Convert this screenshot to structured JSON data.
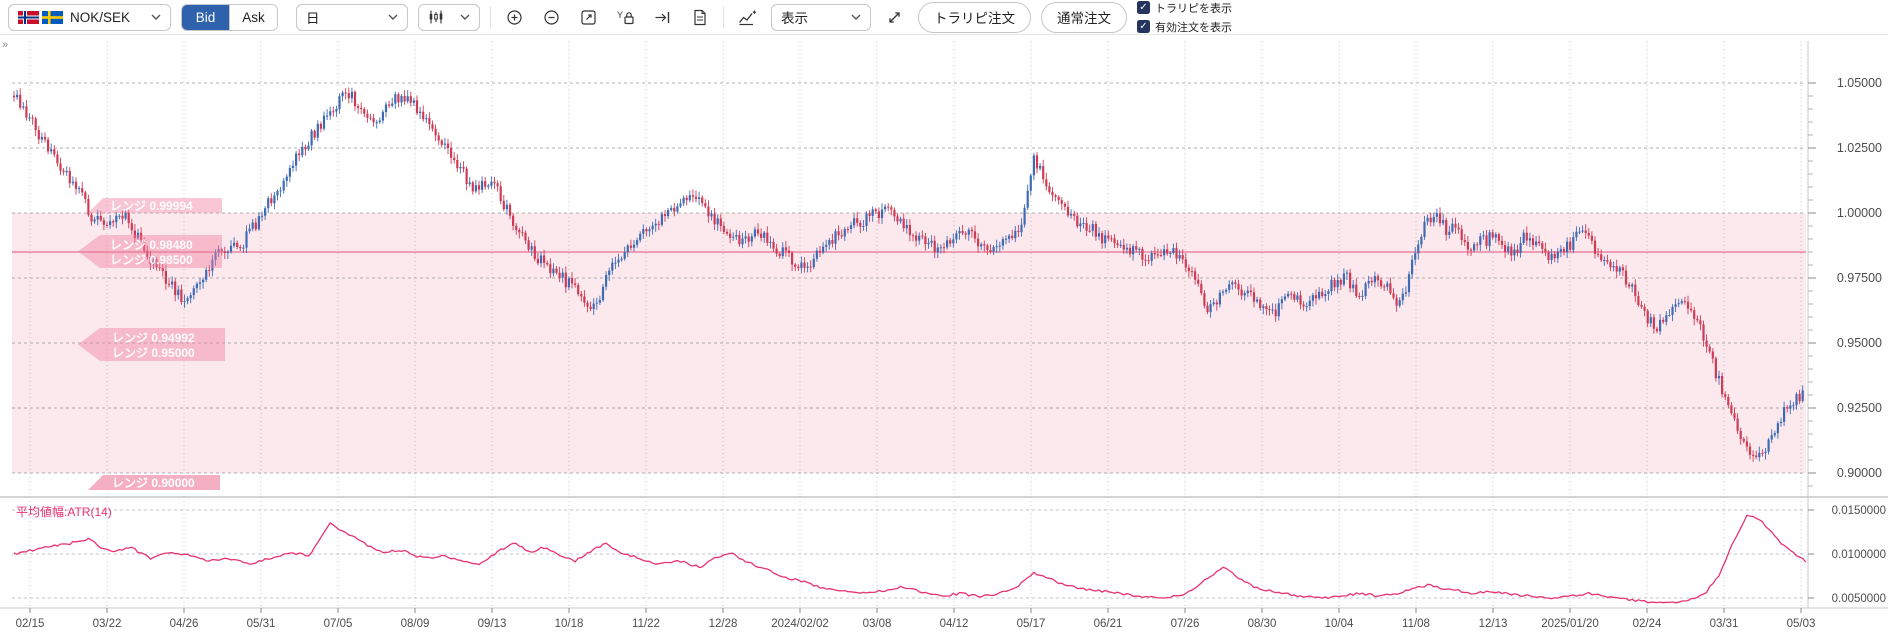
{
  "toolbar": {
    "symbol": "NOK/SEK",
    "bid_label": "Bid",
    "ask_label": "Ask",
    "timeframe": "日",
    "display_label": "表示",
    "toraripi_order_button": "トラリピ注文",
    "normal_order_button": "通常注文",
    "checkbox_toraripi": "トラリピを表示",
    "checkbox_active_orders": "有効注文を表示",
    "icons": [
      "zoom-in",
      "zoom-out",
      "fit-screen",
      "y-axis-lock",
      "go-to-latest",
      "memo",
      "add-indicator",
      "expand"
    ],
    "collapse_glyph": "»",
    "check_glyph": "✓"
  },
  "colors": {
    "accent_blue": "#2e62ad",
    "candle_up": "#3f6bb5",
    "candle_down": "#cf3b55",
    "band_fill": "#fbe9ee",
    "band_line": "#ef9db5",
    "arrow_fill": "rgba(240,128,160,0.45)",
    "arrow_solid": "#f5afc3",
    "atr_line": "#e8336e",
    "grid": "#9b9b9b",
    "axis_text": "#4d4d4d",
    "checkbox_navy": "#25335f"
  },
  "chart_data": {
    "type": "candlestick",
    "symbol": "NOK/SEK",
    "timeframe": "日足",
    "price_axis": {
      "labels": [
        "1.05000",
        "1.02500",
        "1.00000",
        "0.97500",
        "0.95000",
        "0.92500",
        "0.90000"
      ],
      "values": [
        1.05,
        1.025,
        1.0,
        0.975,
        0.95,
        0.925,
        0.9
      ]
    },
    "date_ticks": [
      "02/15",
      "03/22",
      "04/26",
      "05/31",
      "07/05",
      "08/09",
      "09/13",
      "10/18",
      "11/22",
      "12/28",
      "2024/02/02",
      "03/08",
      "04/12",
      "05/17",
      "06/21",
      "07/26",
      "08/30",
      "10/04",
      "11/08",
      "12/13",
      "2025/01/20",
      "02/24",
      "03/31",
      "05/03"
    ],
    "range_band": {
      "top": 1.0,
      "bottom": 0.9,
      "center_line": 0.985,
      "labels": [
        {
          "text": "レンジ 0.99994",
          "group": "top"
        },
        {
          "text": "レンジ 0.98480",
          "group": "mid1"
        },
        {
          "text": "レンジ 0.98500",
          "group": "mid1"
        },
        {
          "text": "レンジ 0.94992",
          "group": "mid2"
        },
        {
          "text": "レンジ 0.95000",
          "group": "mid2"
        },
        {
          "text": "レンジ 0.90000",
          "group": "bottom"
        }
      ]
    },
    "trend_anchors": [
      [
        14,
        1.046
      ],
      [
        28,
        1.037
      ],
      [
        45,
        1.027
      ],
      [
        60,
        1.017
      ],
      [
        76,
        1.011
      ],
      [
        92,
        0.9985
      ],
      [
        108,
        0.9975
      ],
      [
        124,
        1.0005
      ],
      [
        138,
        0.9905
      ],
      [
        155,
        0.9795
      ],
      [
        170,
        0.9735
      ],
      [
        186,
        0.9645
      ],
      [
        202,
        0.9752
      ],
      [
        220,
        0.9868
      ],
      [
        238,
        0.9862
      ],
      [
        256,
        0.9958
      ],
      [
        274,
        1.0068
      ],
      [
        292,
        1.0182
      ],
      [
        310,
        1.0285
      ],
      [
        328,
        1.0388
      ],
      [
        347,
        1.0468
      ],
      [
        360,
        1.0398
      ],
      [
        375,
        1.0352
      ],
      [
        393,
        1.0442
      ],
      [
        410,
        1.0432
      ],
      [
        428,
        1.0338
      ],
      [
        445,
        1.0262
      ],
      [
        460,
        1.0172
      ],
      [
        476,
        1.0082
      ],
      [
        492,
        1.0142
      ],
      [
        508,
        1.0002
      ],
      [
        524,
        0.9902
      ],
      [
        540,
        0.9818
      ],
      [
        558,
        0.9768
      ],
      [
        576,
        0.9698
      ],
      [
        595,
        0.9642
      ],
      [
        612,
        0.9788
      ],
      [
        630,
        0.9872
      ],
      [
        648,
        0.9935
      ],
      [
        665,
        0.9988
      ],
      [
        682,
        1.0032
      ],
      [
        698,
        1.0068
      ],
      [
        712,
        0.9988
      ],
      [
        726,
        0.9922
      ],
      [
        742,
        0.9892
      ],
      [
        758,
        0.9932
      ],
      [
        774,
        0.9872
      ],
      [
        790,
        0.9825
      ],
      [
        806,
        0.9788
      ],
      [
        822,
        0.9865
      ],
      [
        838,
        0.9925
      ],
      [
        855,
        0.9958
      ],
      [
        872,
        0.9992
      ],
      [
        888,
        1.0018
      ],
      [
        902,
        0.9962
      ],
      [
        918,
        0.9895
      ],
      [
        935,
        0.9862
      ],
      [
        950,
        0.9892
      ],
      [
        966,
        0.9922
      ],
      [
        982,
        0.9888
      ],
      [
        998,
        0.9862
      ],
      [
        1012,
        0.9908
      ],
      [
        1024,
        0.9988
      ],
      [
        1034,
        1.0225
      ],
      [
        1044,
        1.0128
      ],
      [
        1058,
        1.0042
      ],
      [
        1072,
        0.9985
      ],
      [
        1088,
        0.9948
      ],
      [
        1104,
        0.9902
      ],
      [
        1120,
        0.9862
      ],
      [
        1136,
        0.9858
      ],
      [
        1152,
        0.9822
      ],
      [
        1168,
        0.9852
      ],
      [
        1184,
        0.9822
      ],
      [
        1196,
        0.9752
      ],
      [
        1208,
        0.9622
      ],
      [
        1220,
        0.9688
      ],
      [
        1234,
        0.9712
      ],
      [
        1248,
        0.9682
      ],
      [
        1262,
        0.9652
      ],
      [
        1276,
        0.9622
      ],
      [
        1290,
        0.9682
      ],
      [
        1304,
        0.9652
      ],
      [
        1318,
        0.9688
      ],
      [
        1332,
        0.9735
      ],
      [
        1346,
        0.9752
      ],
      [
        1358,
        0.9682
      ],
      [
        1372,
        0.9748
      ],
      [
        1386,
        0.9712
      ],
      [
        1398,
        0.9655
      ],
      [
        1408,
        0.9728
      ],
      [
        1415,
        0.9852
      ],
      [
        1425,
        0.9952
      ],
      [
        1436,
        1.0002
      ],
      [
        1448,
        0.9922
      ],
      [
        1458,
        0.9958
      ],
      [
        1468,
        0.9852
      ],
      [
        1478,
        0.9882
      ],
      [
        1490,
        0.9905
      ],
      [
        1502,
        0.9882
      ],
      [
        1512,
        0.9838
      ],
      [
        1524,
        0.9902
      ],
      [
        1536,
        0.9878
      ],
      [
        1548,
        0.9812
      ],
      [
        1560,
        0.9852
      ],
      [
        1572,
        0.9888
      ],
      [
        1584,
        0.9932
      ],
      [
        1596,
        0.9852
      ],
      [
        1608,
        0.9822
      ],
      [
        1620,
        0.9778
      ],
      [
        1632,
        0.9702
      ],
      [
        1644,
        0.9622
      ],
      [
        1656,
        0.9548
      ],
      [
        1668,
        0.9602
      ],
      [
        1680,
        0.9655
      ],
      [
        1692,
        0.9602
      ],
      [
        1702,
        0.9538
      ],
      [
        1712,
        0.9432
      ],
      [
        1722,
        0.9322
      ],
      [
        1732,
        0.9205
      ],
      [
        1742,
        0.9125
      ],
      [
        1752,
        0.9072
      ],
      [
        1762,
        0.9058
      ],
      [
        1772,
        0.9148
      ],
      [
        1782,
        0.9225
      ],
      [
        1792,
        0.9262
      ],
      [
        1806,
        0.9322
      ]
    ],
    "atr": {
      "label": "平均値幅:ATR(14)",
      "axis_labels": [
        "0.0150000",
        "0.0100000",
        "0.0050000"
      ],
      "axis_values": [
        0.015,
        0.01,
        0.005
      ],
      "anchors": [
        [
          14,
          0.01
        ],
        [
          40,
          0.0106
        ],
        [
          70,
          0.0112
        ],
        [
          90,
          0.0118
        ],
        [
          100,
          0.0108
        ],
        [
          115,
          0.0102
        ],
        [
          130,
          0.0108
        ],
        [
          150,
          0.0095
        ],
        [
          170,
          0.0102
        ],
        [
          190,
          0.0098
        ],
        [
          210,
          0.0092
        ],
        [
          230,
          0.0095
        ],
        [
          250,
          0.0088
        ],
        [
          270,
          0.0095
        ],
        [
          290,
          0.0102
        ],
        [
          310,
          0.0098
        ],
        [
          330,
          0.0135
        ],
        [
          340,
          0.0128
        ],
        [
          355,
          0.0118
        ],
        [
          370,
          0.0108
        ],
        [
          385,
          0.0102
        ],
        [
          400,
          0.0105
        ],
        [
          415,
          0.0098
        ],
        [
          430,
          0.0095
        ],
        [
          445,
          0.0098
        ],
        [
          460,
          0.0092
        ],
        [
          480,
          0.0088
        ],
        [
          500,
          0.0105
        ],
        [
          515,
          0.0112
        ],
        [
          530,
          0.0102
        ],
        [
          545,
          0.0108
        ],
        [
          560,
          0.0098
        ],
        [
          575,
          0.0092
        ],
        [
          590,
          0.0102
        ],
        [
          605,
          0.0112
        ],
        [
          620,
          0.0102
        ],
        [
          640,
          0.0095
        ],
        [
          660,
          0.0088
        ],
        [
          680,
          0.0092
        ],
        [
          700,
          0.0085
        ],
        [
          715,
          0.0095
        ],
        [
          730,
          0.0102
        ],
        [
          745,
          0.0092
        ],
        [
          760,
          0.0085
        ],
        [
          775,
          0.0078
        ],
        [
          790,
          0.0072
        ],
        [
          805,
          0.0068
        ],
        [
          820,
          0.0062
        ],
        [
          840,
          0.0058
        ],
        [
          860,
          0.0055
        ],
        [
          880,
          0.0058
        ],
        [
          900,
          0.0062
        ],
        [
          920,
          0.0058
        ],
        [
          940,
          0.0052
        ],
        [
          960,
          0.0055
        ],
        [
          980,
          0.0052
        ],
        [
          1000,
          0.0055
        ],
        [
          1020,
          0.0065
        ],
        [
          1034,
          0.0078
        ],
        [
          1048,
          0.0072
        ],
        [
          1065,
          0.0065
        ],
        [
          1080,
          0.006
        ],
        [
          1100,
          0.0058
        ],
        [
          1120,
          0.0055
        ],
        [
          1140,
          0.0052
        ],
        [
          1160,
          0.005
        ],
        [
          1180,
          0.0052
        ],
        [
          1196,
          0.0062
        ],
        [
          1210,
          0.0075
        ],
        [
          1225,
          0.0085
        ],
        [
          1240,
          0.0072
        ],
        [
          1255,
          0.0062
        ],
        [
          1270,
          0.0058
        ],
        [
          1285,
          0.0055
        ],
        [
          1300,
          0.0052
        ],
        [
          1320,
          0.005
        ],
        [
          1340,
          0.0052
        ],
        [
          1360,
          0.0055
        ],
        [
          1380,
          0.0052
        ],
        [
          1400,
          0.0055
        ],
        [
          1415,
          0.0062
        ],
        [
          1430,
          0.0065
        ],
        [
          1445,
          0.006
        ],
        [
          1460,
          0.0058
        ],
        [
          1475,
          0.0055
        ],
        [
          1490,
          0.0058
        ],
        [
          1510,
          0.0055
        ],
        [
          1530,
          0.0052
        ],
        [
          1550,
          0.005
        ],
        [
          1570,
          0.0052
        ],
        [
          1590,
          0.0055
        ],
        [
          1610,
          0.005
        ],
        [
          1630,
          0.0048
        ],
        [
          1650,
          0.0045
        ],
        [
          1670,
          0.0045
        ],
        [
          1690,
          0.0048
        ],
        [
          1705,
          0.0055
        ],
        [
          1720,
          0.0078
        ],
        [
          1730,
          0.0105
        ],
        [
          1740,
          0.0128
        ],
        [
          1748,
          0.0145
        ],
        [
          1756,
          0.0142
        ],
        [
          1766,
          0.0132
        ],
        [
          1776,
          0.0118
        ],
        [
          1788,
          0.0105
        ],
        [
          1798,
          0.0098
        ],
        [
          1806,
          0.0092
        ]
      ]
    }
  }
}
